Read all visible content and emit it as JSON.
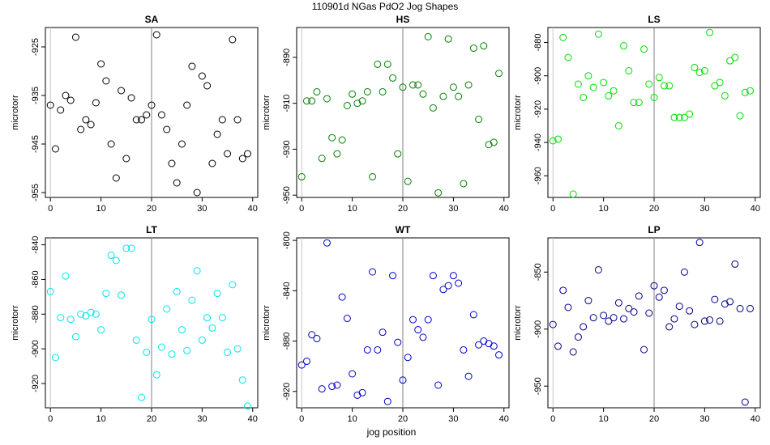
{
  "figure": {
    "title": "110901d   NGas PdO2 Jog Shapes",
    "xlabel": "jog position"
  },
  "chart_data": [
    {
      "type": "scatter",
      "title": "SA",
      "ylabel": "microtorr",
      "color": "#000000",
      "xlim": [
        -1,
        41
      ],
      "ylim": [
        -956,
        -921
      ],
      "xticks": [
        0,
        10,
        20,
        30,
        40
      ],
      "yticks": [
        -925,
        -935,
        -945,
        -955
      ],
      "vline": 20,
      "x": [
        0,
        1,
        2,
        3,
        4,
        5,
        6,
        7,
        8,
        9,
        10,
        11,
        12,
        13,
        14,
        15,
        16,
        17,
        18,
        19,
        20,
        21,
        22,
        23,
        24,
        25,
        26,
        27,
        28,
        29,
        30,
        31,
        32,
        33,
        34,
        35,
        36,
        37,
        38,
        39
      ],
      "y": [
        -937,
        -946,
        -938,
        -935,
        -936,
        -923,
        -942,
        -940,
        -941,
        -936.5,
        -928.5,
        -932,
        -945,
        -952,
        -934,
        -948,
        -935.5,
        -940,
        -940,
        -939,
        -937,
        -922.5,
        -939,
        -942,
        -949,
        -953,
        -945,
        -937,
        -929,
        -955,
        -931,
        -933,
        -949,
        -943,
        -940,
        -947,
        -923.5,
        -940,
        -948,
        -947
      ]
    },
    {
      "type": "scatter",
      "title": "HS",
      "ylabel": "microtorr",
      "color": "#008000",
      "xlim": [
        -1,
        41
      ],
      "ylim": [
        -951,
        -877
      ],
      "xticks": [
        0,
        10,
        20,
        30,
        40
      ],
      "yticks": [
        -890,
        -910,
        -930,
        -950
      ],
      "vline": 20,
      "x": [
        0,
        1,
        2,
        3,
        4,
        5,
        6,
        7,
        8,
        9,
        10,
        11,
        12,
        13,
        14,
        15,
        16,
        17,
        18,
        19,
        20,
        21,
        22,
        23,
        24,
        25,
        26,
        27,
        28,
        29,
        30,
        31,
        32,
        33,
        34,
        35,
        36,
        37,
        38,
        39
      ],
      "y": [
        -942,
        -909,
        -909,
        -905,
        -934,
        -908,
        -925,
        -932,
        -926,
        -911,
        -906,
        -910,
        -909,
        -905,
        -942,
        -893,
        -905,
        -893,
        -899,
        -932,
        -903,
        -944,
        -902,
        -902,
        -906,
        -881,
        -912,
        -949,
        -907,
        -882,
        -903,
        -907,
        -945,
        -902,
        -886,
        -917,
        -885,
        -928,
        -927,
        -897
      ]
    },
    {
      "type": "scatter",
      "title": "LS",
      "ylabel": "microtorr",
      "color": "#00dd00",
      "xlim": [
        -1,
        41
      ],
      "ylim": [
        -973,
        -871
      ],
      "xticks": [
        0,
        10,
        20,
        30,
        40
      ],
      "yticks": [
        -880,
        -900,
        -920,
        -940,
        -960
      ],
      "vline": 20,
      "x": [
        0,
        1,
        2,
        3,
        4,
        5,
        6,
        7,
        8,
        9,
        10,
        11,
        12,
        13,
        14,
        15,
        16,
        17,
        18,
        19,
        20,
        21,
        22,
        23,
        24,
        25,
        26,
        27,
        28,
        29,
        30,
        31,
        32,
        33,
        34,
        35,
        36,
        37,
        38,
        39
      ],
      "y": [
        -939,
        -938,
        -877,
        -889,
        -971,
        -905,
        -913,
        -900,
        -907,
        -875,
        -904,
        -912,
        -909,
        -930,
        -882,
        -897,
        -916,
        -916,
        -884,
        -905,
        -913,
        -901,
        -906,
        -906,
        -925,
        -925,
        -925,
        -923,
        -895,
        -898,
        -897,
        -874,
        -906,
        -904,
        -912,
        -891,
        -889,
        -924,
        -910,
        -909
      ]
    },
    {
      "type": "scatter",
      "title": "LT",
      "ylabel": "microtorr",
      "color": "#00e5ee",
      "xlim": [
        -1,
        41
      ],
      "ylim": [
        -934,
        -836
      ],
      "xticks": [
        0,
        10,
        20,
        30,
        40
      ],
      "yticks": [
        -840,
        -860,
        -880,
        -900,
        -920
      ],
      "vline": 20,
      "x": [
        0,
        1,
        2,
        3,
        4,
        5,
        6,
        7,
        8,
        9,
        10,
        11,
        12,
        13,
        14,
        15,
        16,
        17,
        18,
        19,
        20,
        21,
        22,
        23,
        24,
        25,
        26,
        27,
        28,
        29,
        30,
        31,
        32,
        33,
        34,
        35,
        36,
        37,
        38,
        39
      ],
      "y": [
        -867,
        -905,
        -882,
        -858,
        -883,
        -893,
        -880,
        -881,
        -879,
        -880,
        -889,
        -868,
        -846,
        -849,
        -869,
        -842,
        -842,
        -895,
        -928,
        -902,
        -883,
        -915,
        -899,
        -877,
        -903,
        -867,
        -889,
        -901,
        -872,
        -855,
        -895,
        -882,
        -888,
        -868,
        -882,
        -902,
        -863,
        -900,
        -918,
        -933
      ]
    },
    {
      "type": "scatter",
      "title": "WT",
      "ylabel": "microtorr",
      "color": "#0000cc",
      "xlim": [
        -1,
        41
      ],
      "ylim": [
        -933,
        -798
      ],
      "xticks": [
        0,
        10,
        20,
        30,
        40
      ],
      "yticks": [
        -800,
        -840,
        -880,
        -920
      ],
      "vline": 20,
      "x": [
        0,
        1,
        2,
        3,
        4,
        5,
        6,
        7,
        8,
        9,
        10,
        11,
        12,
        13,
        14,
        15,
        16,
        17,
        18,
        19,
        20,
        21,
        22,
        23,
        24,
        25,
        26,
        27,
        28,
        29,
        30,
        31,
        32,
        33,
        34,
        35,
        36,
        37,
        38,
        39
      ],
      "y": [
        -899,
        -896,
        -875,
        -878,
        -918,
        -802,
        -916,
        -915,
        -845,
        -862,
        -906,
        -923,
        -921,
        -887,
        -825,
        -887,
        -873,
        -928,
        -828,
        -881,
        -911,
        -893,
        -863,
        -871,
        -877,
        -863,
        -828,
        -915,
        -839,
        -836,
        -828,
        -834,
        -887,
        -908,
        -859,
        -883,
        -880,
        -882,
        -884,
        -891
      ]
    },
    {
      "type": "scatter",
      "title": "LP",
      "ylabel": "microtorr",
      "color": "#00008b",
      "xlim": [
        -1,
        41
      ],
      "ylim": [
        -969,
        -820
      ],
      "xticks": [
        0,
        10,
        20,
        30,
        40
      ],
      "yticks": [
        -850,
        -900,
        -950
      ],
      "vline": 20,
      "x": [
        0,
        1,
        2,
        3,
        4,
        5,
        6,
        7,
        8,
        9,
        10,
        11,
        12,
        13,
        14,
        15,
        16,
        17,
        18,
        19,
        20,
        21,
        22,
        23,
        24,
        25,
        26,
        27,
        28,
        29,
        30,
        31,
        32,
        33,
        34,
        35,
        36,
        37,
        38,
        39
      ],
      "y": [
        -896,
        -915,
        -866,
        -881,
        -920,
        -907,
        -898,
        -875,
        -890,
        -848,
        -888,
        -893,
        -890,
        -877,
        -891,
        -882,
        -885,
        -871,
        -918,
        -886,
        -862,
        -872,
        -866,
        -898,
        -891,
        -880,
        -850,
        -884,
        -896,
        -824,
        -893,
        -892,
        -874,
        -893,
        -878,
        -876,
        -843,
        -882,
        -964,
        -882
      ]
    }
  ]
}
